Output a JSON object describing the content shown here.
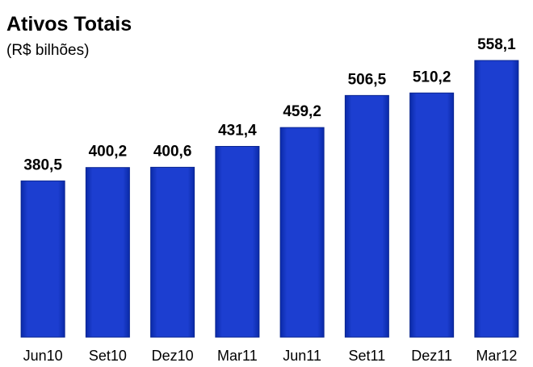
{
  "chart_data": {
    "type": "bar",
    "title": "Ativos Totais",
    "subtitle": "(R$ bilhões)",
    "categories": [
      "Jun10",
      "Set10",
      "Dez10",
      "Mar11",
      "Jun11",
      "Set11",
      "Dez11",
      "Mar12"
    ],
    "values": [
      380.5,
      400.2,
      400.6,
      431.4,
      459.2,
      506.5,
      510.2,
      558.1
    ],
    "value_labels": [
      "380,5",
      "400,2",
      "400,6",
      "431,4",
      "459,2",
      "506,5",
      "510,2",
      "558,1"
    ],
    "color": "#1c3ed0",
    "ylim": [
      150,
      570
    ]
  }
}
